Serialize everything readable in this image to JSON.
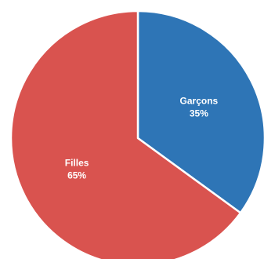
{
  "chart_data": {
    "type": "pie",
    "slices": [
      {
        "label": "Garçons",
        "value_label": "35%",
        "value": 35,
        "color": "#2e75b6"
      },
      {
        "label": "Filles",
        "value_label": "65%",
        "value": 65,
        "color": "#d9534f"
      }
    ],
    "start_angle": "12 o'clock",
    "direction": "clockwise",
    "slice_border_color": "#ffffff",
    "legend": "none"
  }
}
